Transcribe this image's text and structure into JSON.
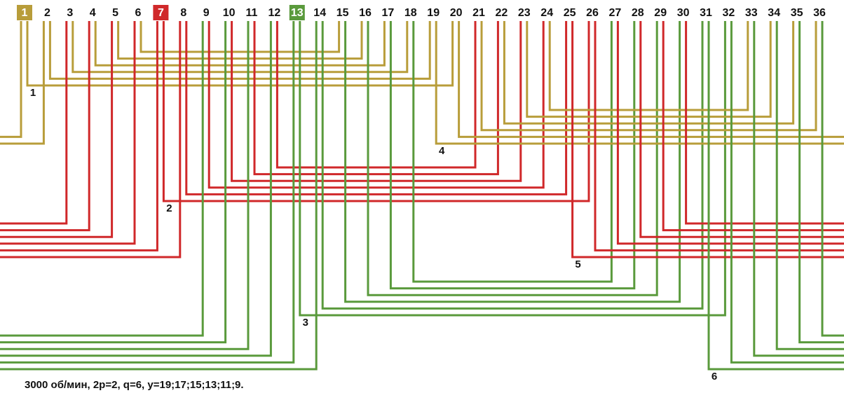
{
  "slots": [
    1,
    2,
    3,
    4,
    5,
    6,
    7,
    8,
    9,
    10,
    11,
    12,
    13,
    14,
    15,
    16,
    17,
    18,
    19,
    20,
    21,
    22,
    23,
    24,
    25,
    26,
    27,
    28,
    29,
    30,
    31,
    32,
    33,
    34,
    35,
    36
  ],
  "winding_labels": [
    1,
    2,
    3,
    4,
    5,
    6
  ],
  "caption": "3000 об/мин, 2р=2, q=6, y=19;17;15;13;11;9."
}
